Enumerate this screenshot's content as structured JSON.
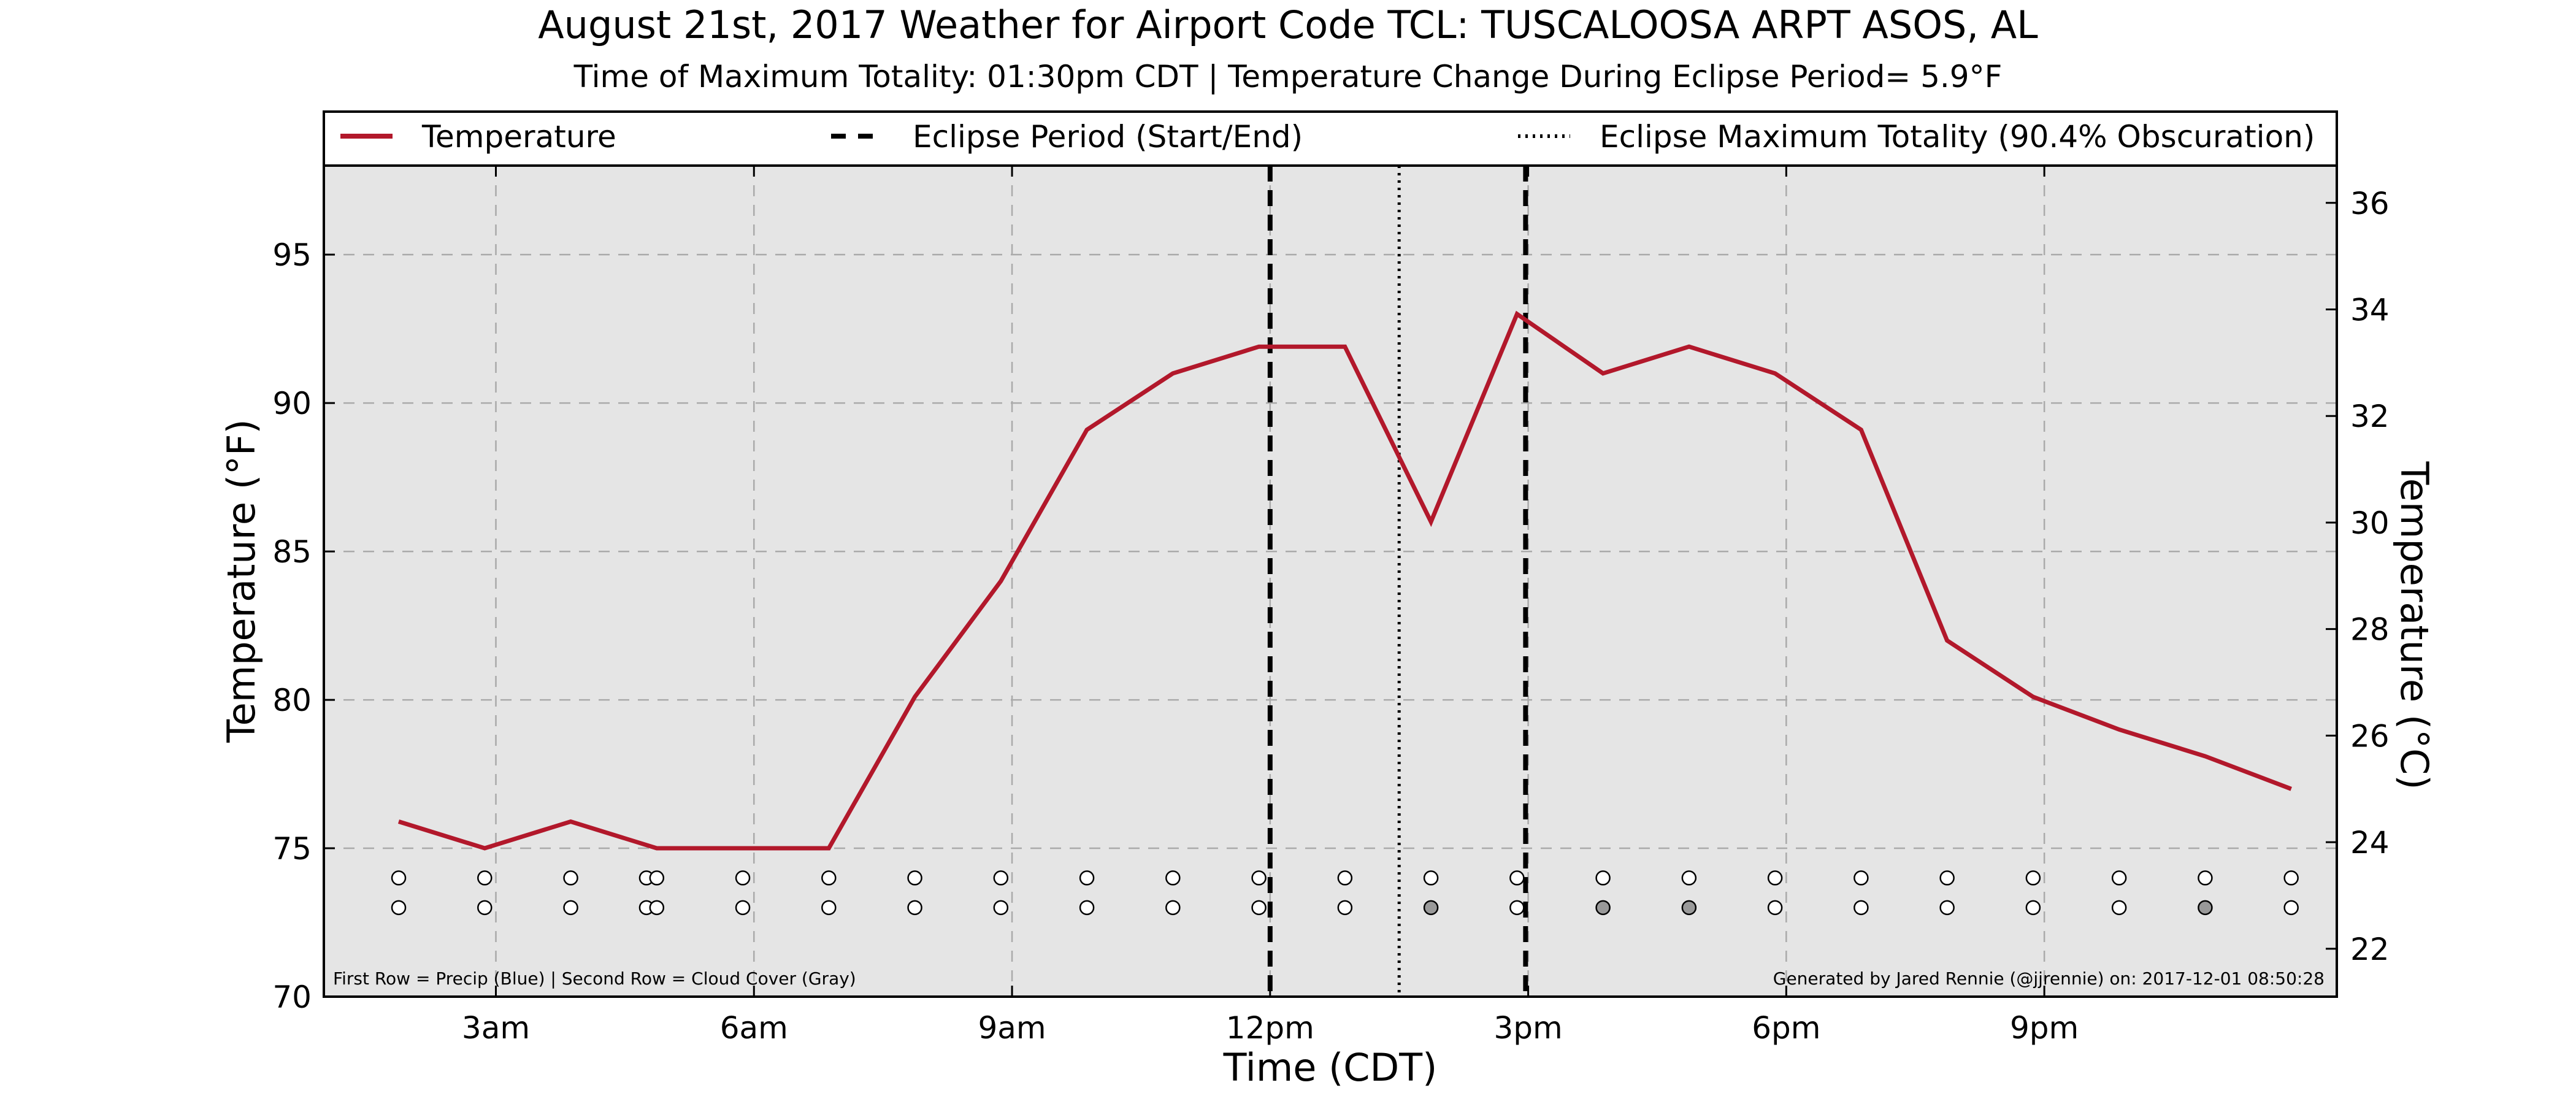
{
  "chart_data": {
    "type": "line",
    "title": "August 21st, 2017 Weather for Airport Code TCL: TUSCALOOSA ARPT ASOS, AL",
    "subtitle": "Time of Maximum Totality: 01:30pm CDT | Temperature Change During Eclipse Period= 5.9°F",
    "xlabel": "Time (CDT)",
    "ylabel": "Temperature (°F)",
    "ylabel_right": "Temperature (°C)",
    "xlim_hours": [
      1,
      24.4
    ],
    "ylim": [
      70,
      98
    ],
    "ylim_right": [
      21.1,
      36.7
    ],
    "x_ticks": [
      {
        "hour": 3,
        "label": "3am"
      },
      {
        "hour": 6,
        "label": "6am"
      },
      {
        "hour": 9,
        "label": "9am"
      },
      {
        "hour": 12,
        "label": "12pm"
      },
      {
        "hour": 15,
        "label": "3pm"
      },
      {
        "hour": 18,
        "label": "6pm"
      },
      {
        "hour": 21,
        "label": "9pm"
      }
    ],
    "y_ticks": [
      "70",
      "75",
      "80",
      "85",
      "90",
      "95"
    ],
    "y_ticks_right": [
      "22",
      "24",
      "26",
      "28",
      "30",
      "32",
      "34",
      "36"
    ],
    "grid": true,
    "legend": {
      "placement": "top",
      "entries": [
        {
          "label": "Temperature",
          "style": "solid"
        },
        {
          "label": "Eclipse Period (Start/End)",
          "style": "dashed"
        },
        {
          "label": "Eclipse Maximum Totality (90.4% Obscuration)",
          "style": "dotted"
        }
      ]
    },
    "series": [
      {
        "name": "Temperature",
        "color": "#b2182b",
        "points": [
          {
            "x": 1.87,
            "y": 75.9
          },
          {
            "x": 2.87,
            "y": 75.0
          },
          {
            "x": 3.87,
            "y": 75.9
          },
          {
            "x": 4.87,
            "y": 75.0
          },
          {
            "x": 5.87,
            "y": 75.0
          },
          {
            "x": 6.87,
            "y": 75.0
          },
          {
            "x": 7.87,
            "y": 80.1
          },
          {
            "x": 8.87,
            "y": 84.0
          },
          {
            "x": 9.87,
            "y": 89.1
          },
          {
            "x": 10.87,
            "y": 91.0
          },
          {
            "x": 11.87,
            "y": 91.9
          },
          {
            "x": 12.87,
            "y": 91.9
          },
          {
            "x": 13.87,
            "y": 86.0
          },
          {
            "x": 14.87,
            "y": 93.0
          },
          {
            "x": 15.87,
            "y": 91.0
          },
          {
            "x": 16.87,
            "y": 91.9
          },
          {
            "x": 17.87,
            "y": 91.0
          },
          {
            "x": 18.87,
            "y": 89.1
          },
          {
            "x": 19.87,
            "y": 82.0
          },
          {
            "x": 20.87,
            "y": 80.1
          },
          {
            "x": 21.87,
            "y": 79.0
          },
          {
            "x": 22.87,
            "y": 78.1
          },
          {
            "x": 23.87,
            "y": 77.0
          }
        ]
      }
    ],
    "eclipse_start_hour": 12.0,
    "eclipse_end_hour": 14.97,
    "eclipse_max_hour": 13.5,
    "precip_row": {
      "y": 74,
      "points": [
        {
          "x": 1.87,
          "fill": "#ffffff"
        },
        {
          "x": 2.87,
          "fill": "#ffffff"
        },
        {
          "x": 3.87,
          "fill": "#ffffff"
        },
        {
          "x": 4.75,
          "fill": "#ffffff"
        },
        {
          "x": 4.87,
          "fill": "#ffffff"
        },
        {
          "x": 5.87,
          "fill": "#ffffff"
        },
        {
          "x": 6.87,
          "fill": "#ffffff"
        },
        {
          "x": 7.87,
          "fill": "#ffffff"
        },
        {
          "x": 8.87,
          "fill": "#ffffff"
        },
        {
          "x": 9.87,
          "fill": "#ffffff"
        },
        {
          "x": 10.87,
          "fill": "#ffffff"
        },
        {
          "x": 11.87,
          "fill": "#ffffff"
        },
        {
          "x": 12.87,
          "fill": "#ffffff"
        },
        {
          "x": 13.87,
          "fill": "#ffffff"
        },
        {
          "x": 14.87,
          "fill": "#ffffff"
        },
        {
          "x": 15.87,
          "fill": "#ffffff"
        },
        {
          "x": 16.87,
          "fill": "#ffffff"
        },
        {
          "x": 17.87,
          "fill": "#ffffff"
        },
        {
          "x": 18.87,
          "fill": "#ffffff"
        },
        {
          "x": 19.87,
          "fill": "#ffffff"
        },
        {
          "x": 20.87,
          "fill": "#ffffff"
        },
        {
          "x": 21.87,
          "fill": "#ffffff"
        },
        {
          "x": 22.87,
          "fill": "#ffffff"
        },
        {
          "x": 23.87,
          "fill": "#ffffff"
        }
      ]
    },
    "cloud_row": {
      "y": 73,
      "points": [
        {
          "x": 1.87,
          "fill": "#ffffff"
        },
        {
          "x": 2.87,
          "fill": "#ffffff"
        },
        {
          "x": 3.87,
          "fill": "#ffffff"
        },
        {
          "x": 4.75,
          "fill": "#ffffff"
        },
        {
          "x": 4.87,
          "fill": "#ffffff"
        },
        {
          "x": 5.87,
          "fill": "#ffffff"
        },
        {
          "x": 6.87,
          "fill": "#ffffff"
        },
        {
          "x": 7.87,
          "fill": "#ffffff"
        },
        {
          "x": 8.87,
          "fill": "#ffffff"
        },
        {
          "x": 9.87,
          "fill": "#ffffff"
        },
        {
          "x": 10.87,
          "fill": "#ffffff"
        },
        {
          "x": 11.87,
          "fill": "#ffffff"
        },
        {
          "x": 12.87,
          "fill": "#ffffff"
        },
        {
          "x": 13.87,
          "fill": "#999999"
        },
        {
          "x": 14.87,
          "fill": "#ffffff"
        },
        {
          "x": 15.87,
          "fill": "#999999"
        },
        {
          "x": 16.87,
          "fill": "#999999"
        },
        {
          "x": 17.87,
          "fill": "#ffffff"
        },
        {
          "x": 18.87,
          "fill": "#ffffff"
        },
        {
          "x": 19.87,
          "fill": "#ffffff"
        },
        {
          "x": 20.87,
          "fill": "#ffffff"
        },
        {
          "x": 21.87,
          "fill": "#ffffff"
        },
        {
          "x": 22.87,
          "fill": "#999999"
        },
        {
          "x": 23.87,
          "fill": "#ffffff"
        }
      ]
    },
    "annotation_left": "First Row = Precip (Blue) | Second Row = Cloud Cover (Gray)",
    "annotation_right": "Generated by Jared Rennie (@jjrennie) on: 2017-12-01 08:50:28",
    "colors": {
      "plot_background": "#e5e5e5",
      "temperature_line": "#b2182b",
      "grid": "#aaaaaa"
    }
  }
}
